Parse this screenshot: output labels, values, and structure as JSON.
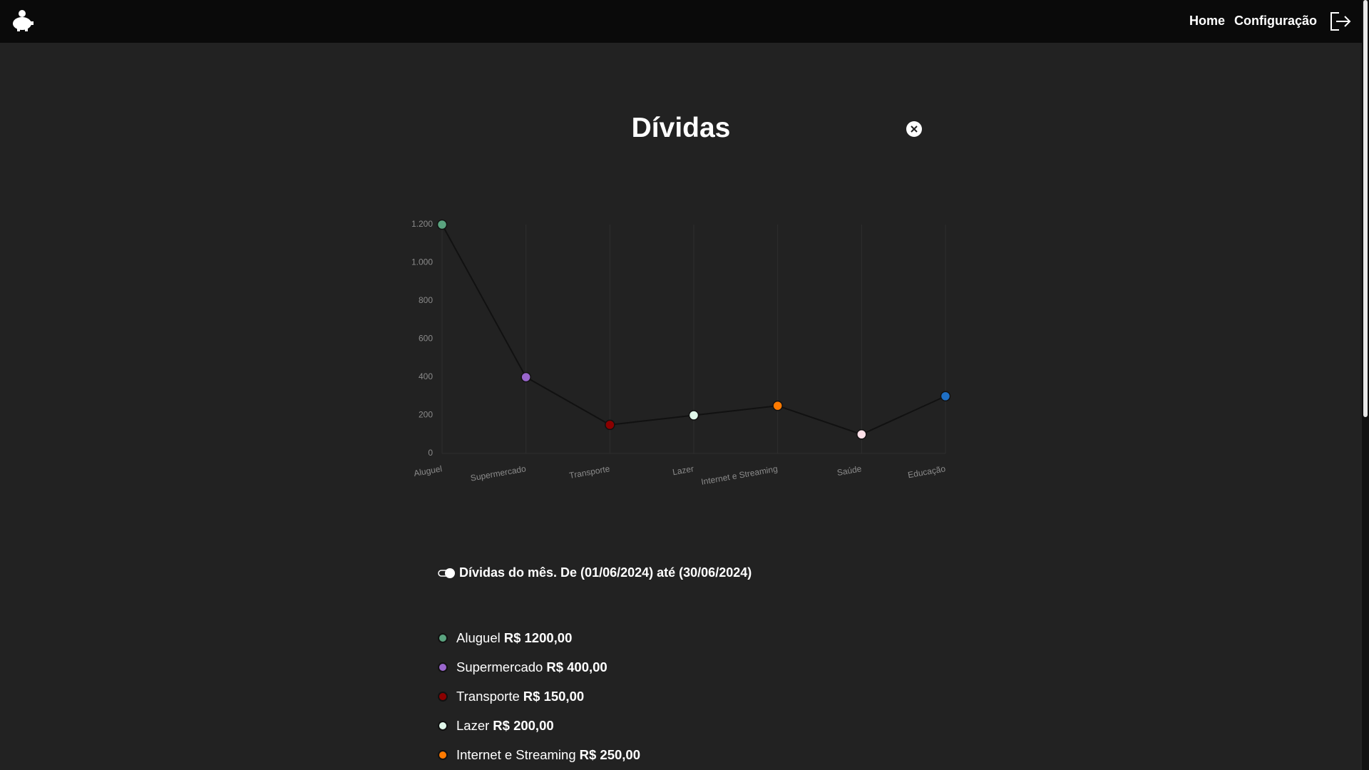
{
  "nav": {
    "links": [
      "Home",
      "Configuração"
    ]
  },
  "title": "Dívidas",
  "chart_data": {
    "type": "line",
    "categories": [
      "Aluguel",
      "Supermercado",
      "Transporte",
      "Lazer",
      "Internet e Streaming",
      "Saúde",
      "Educação"
    ],
    "values": [
      1200,
      400,
      150,
      200,
      250,
      100,
      300
    ],
    "color": "#111111",
    "point_colors": [
      "#5aa37f",
      "#9966cc",
      "#8b0000",
      "#e0f7ea",
      "#ff7a00",
      "#fde0e8",
      "#1f6fc4"
    ],
    "ylim": [
      0,
      1200
    ],
    "yticks": [
      0,
      200,
      400,
      600,
      800,
      {
        "value": 1000,
        "label": "1.000"
      },
      {
        "value": 1200,
        "label": "1.200"
      }
    ],
    "x_grid": true
  },
  "period_toggle": "Dívidas do mês. De (01/06/2024) até (30/06/2024)",
  "items": [
    {
      "label": "Aluguel",
      "amount": "R$ 1200,00"
    },
    {
      "label": "Supermercado",
      "amount": "R$ 400,00"
    },
    {
      "label": "Transporte",
      "amount": "R$ 150,00"
    },
    {
      "label": "Lazer",
      "amount": "R$ 200,00"
    },
    {
      "label": "Internet e Streaming",
      "amount": "R$ 250,00"
    }
  ]
}
